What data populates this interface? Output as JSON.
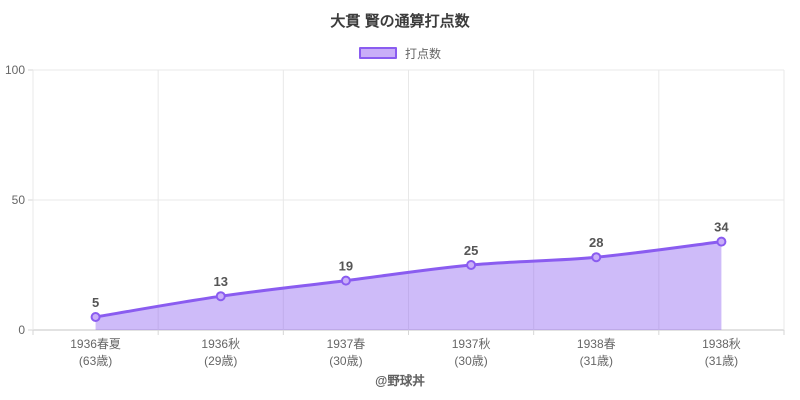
{
  "title": "大貫 賢の通算打点数",
  "legend": {
    "label": "打点数"
  },
  "footer": "@野球丼",
  "colors": {
    "line": "#8a5cf0",
    "area_fill": "rgba(138,92,240,0.42)",
    "marker_fill": "#c9aef8",
    "grid": "#e8e8e8",
    "axis_line": "#c6c6c6",
    "tick_mark": "#d6d6d6",
    "point_label": "#555555",
    "axis_label": "#666666"
  },
  "chart_data": {
    "type": "area",
    "title": "大貫 賢の通算打点数",
    "series_label": "打点数",
    "categories": [
      "1936春夏",
      "1936秋",
      "1937春",
      "1937秋",
      "1938春",
      "1938秋"
    ],
    "category_sublabels": [
      "(63歳)",
      "(29歳)",
      "(30歳)",
      "(30歳)",
      "(31歳)",
      "(31歳)"
    ],
    "values": [
      5,
      13,
      19,
      25,
      28,
      34
    ],
    "ylim": [
      0,
      100
    ],
    "yticks": [
      0,
      50,
      100
    ],
    "grid": true,
    "legend_position": "top",
    "annotation": "@野球丼"
  }
}
